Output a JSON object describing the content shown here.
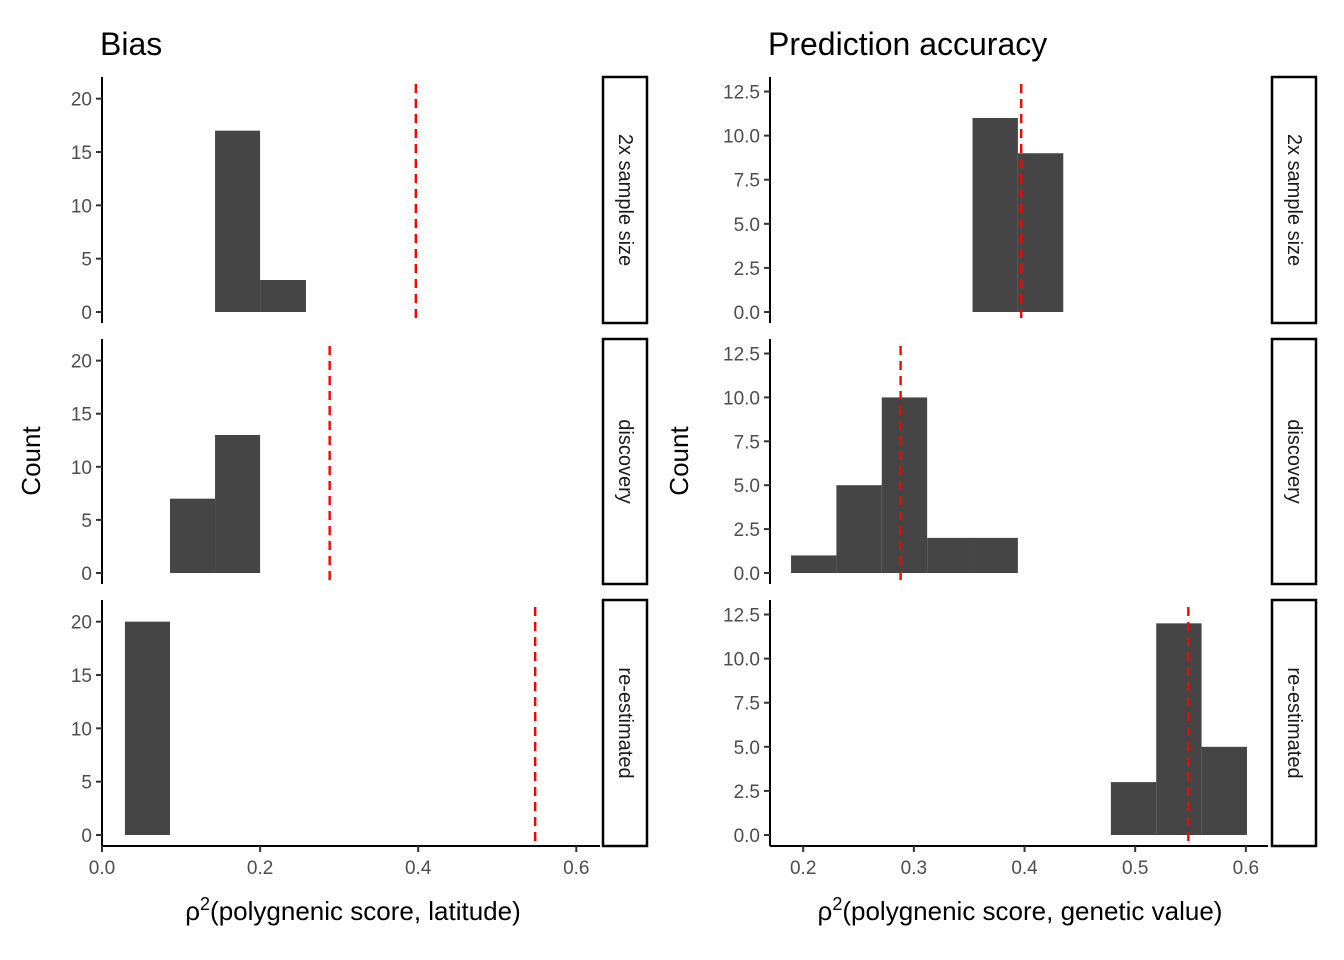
{
  "chart_data": [
    {
      "type": "bar",
      "title": "Bias",
      "xlabel": "ρ²(polygnenic score, latitude)",
      "ylabel": "Count",
      "xlim": [
        0.0,
        0.63
      ],
      "ylim": [
        0,
        21
      ],
      "x_ticks": [
        0.0,
        0.2,
        0.4,
        0.6
      ],
      "x_tick_labels": [
        "0.0",
        "0.2",
        "0.4",
        "0.6"
      ],
      "y_ticks": [
        0,
        5,
        10,
        15,
        20
      ],
      "y_tick_labels": [
        "0",
        "5",
        "10",
        "15",
        "20"
      ],
      "grid": false,
      "panels": [
        {
          "strip": "2x sample size",
          "bins": [
            {
              "x0": 0.143,
              "x1": 0.2,
              "count": 17
            },
            {
              "x0": 0.2,
              "x1": 0.258,
              "count": 3
            }
          ],
          "reference_line": 0.397
        },
        {
          "strip": "discovery",
          "bins": [
            {
              "x0": 0.086,
              "x1": 0.143,
              "count": 7
            },
            {
              "x0": 0.143,
              "x1": 0.2,
              "count": 13
            }
          ],
          "reference_line": 0.288
        },
        {
          "strip": "re-estimated",
          "bins": [
            {
              "x0": 0.029,
              "x1": 0.086,
              "count": 20
            }
          ],
          "reference_line": 0.548
        }
      ]
    },
    {
      "type": "bar",
      "title": "Prediction accuracy",
      "xlabel": "ρ²(polygnenic score, genetic value)",
      "ylabel": "Count",
      "xlim": [
        0.17,
        0.62
      ],
      "ylim": [
        0,
        12.7
      ],
      "x_ticks": [
        0.2,
        0.3,
        0.4,
        0.5,
        0.6
      ],
      "x_tick_labels": [
        "0.2",
        "0.3",
        "0.4",
        "0.5",
        "0.6"
      ],
      "y_ticks": [
        0.0,
        2.5,
        5.0,
        7.5,
        10.0,
        12.5
      ],
      "y_tick_labels": [
        "0.0",
        "2.5",
        "5.0",
        "7.5",
        "10.0",
        "12.5"
      ],
      "grid": false,
      "panels": [
        {
          "strip": "2x sample size",
          "bins": [
            {
              "x0": 0.353,
              "x1": 0.394,
              "count": 11
            },
            {
              "x0": 0.394,
              "x1": 0.435,
              "count": 9
            }
          ],
          "reference_line": 0.397
        },
        {
          "strip": "discovery",
          "bins": [
            {
              "x0": 0.189,
              "x1": 0.23,
              "count": 1
            },
            {
              "x0": 0.23,
              "x1": 0.271,
              "count": 5
            },
            {
              "x0": 0.271,
              "x1": 0.312,
              "count": 10
            },
            {
              "x0": 0.312,
              "x1": 0.353,
              "count": 2
            },
            {
              "x0": 0.353,
              "x1": 0.394,
              "count": 2
            }
          ],
          "reference_line": 0.288
        },
        {
          "strip": "re-estimated",
          "bins": [
            {
              "x0": 0.478,
              "x1": 0.519,
              "count": 3
            },
            {
              "x0": 0.519,
              "x1": 0.56,
              "count": 12
            },
            {
              "x0": 0.56,
              "x1": 0.601,
              "count": 5
            }
          ],
          "reference_line": 0.548
        }
      ]
    }
  ],
  "colors": {
    "bar": "#454545",
    "reference_line": "#ff0000"
  }
}
